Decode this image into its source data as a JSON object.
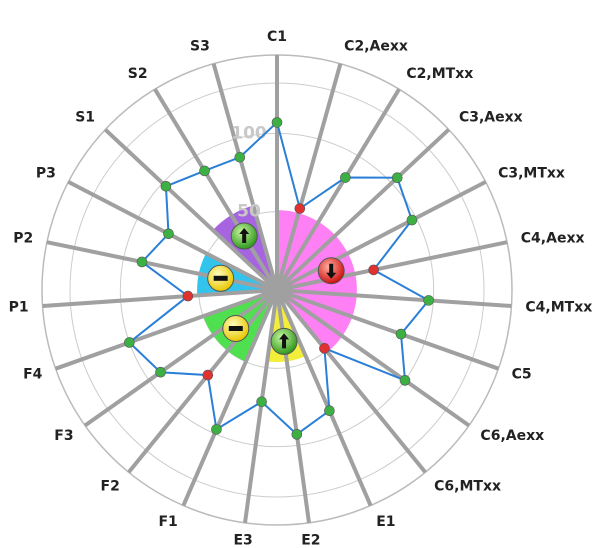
{
  "chart_data": {
    "type": "radar",
    "categories": [
      "C1",
      "C2,Aexx",
      "C2,MTxx",
      "C3,Aexx",
      "C3,MTxx",
      "C4,Aexx",
      "C4,MTxx",
      "C5",
      "C6,Aexx",
      "C6,MTxx",
      "E1",
      "E2",
      "E3",
      "F1",
      "F2",
      "F3",
      "F4",
      "P1",
      "P2",
      "P3",
      "S1",
      "S2",
      "S3"
    ],
    "values": [
      107,
      54,
      84,
      105,
      97,
      63,
      97,
      84,
      100,
      48,
      84,
      93,
      72,
      97,
      70,
      91,
      100,
      57,
      88,
      78,
      97,
      89,
      88
    ],
    "point_colors": [
      "#3cb043",
      "#e03030",
      "#3cb043",
      "#3cb043",
      "#3cb043",
      "#e03030",
      "#3cb043",
      "#3cb043",
      "#3cb043",
      "#e03030",
      "#3cb043",
      "#3cb043",
      "#3cb043",
      "#3cb043",
      "#e03030",
      "#3cb043",
      "#3cb043",
      "#e03030",
      "#3cb043",
      "#3cb043",
      "#3cb043",
      "#3cb043",
      "#3cb043"
    ],
    "line_color": "#2a7fd6",
    "ylim": [
      0,
      150
    ],
    "yticks": [
      50,
      100
    ],
    "groups": [
      {
        "color": "#ff80f4",
        "value": 51,
        "icon": "down"
      },
      {
        "color": "#f2ee3a",
        "value": 46,
        "icon": "up"
      },
      {
        "color": "#4ee04e",
        "value": 50,
        "icon": "minus"
      },
      {
        "color": "#33c4ee",
        "value": 51,
        "icon": "minus"
      },
      {
        "color": "#a664e0",
        "value": 56,
        "icon": "up"
      }
    ]
  }
}
